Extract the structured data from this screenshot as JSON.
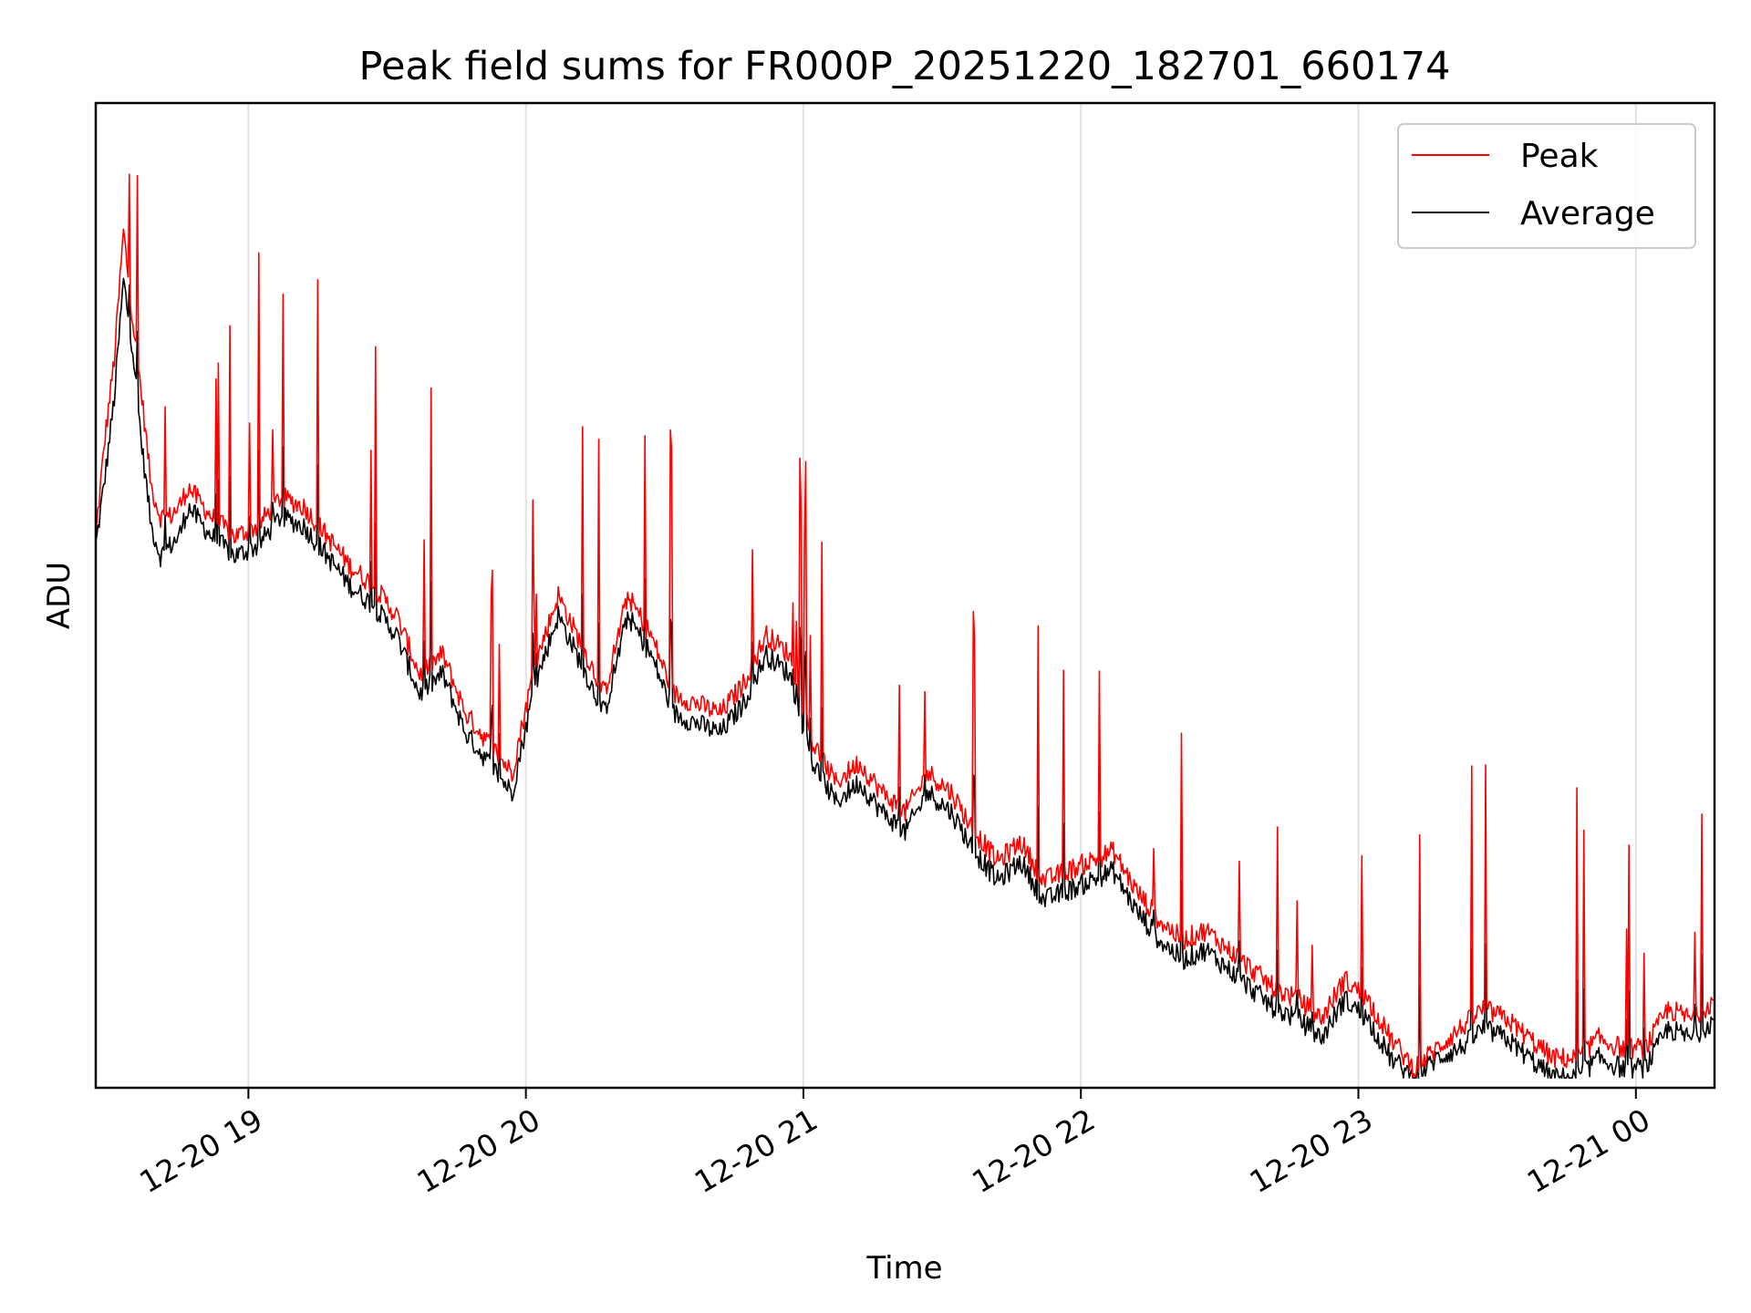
{
  "chart_data": {
    "type": "line",
    "title": "Peak field sums for FR000P_20251220_182701_660174",
    "xlabel": "Time",
    "ylabel": "ADU",
    "x_ticks": [
      "12-20 19",
      "12-20 20",
      "12-20 21",
      "12-20 22",
      "12-20 23",
      "12-21 00"
    ],
    "xlim": [
      "2025-12-20 18:27",
      "2025-12-21 00:17"
    ],
    "ylim": [
      0,
      100
    ],
    "y_tick_labels_shown": false,
    "grid": "vertical",
    "legend": "top-right",
    "series": [
      {
        "name": "Peak",
        "color": "#ff0000",
        "x_minutes_from_1827": [
          0,
          2,
          4,
          6,
          8,
          10,
          12,
          14,
          16,
          18,
          20,
          25,
          30,
          35,
          40,
          45,
          50,
          55,
          60,
          65,
          70,
          75,
          80,
          85,
          90,
          95,
          100,
          105,
          110,
          115,
          120,
          125,
          130,
          135,
          140,
          145,
          150,
          155,
          160,
          165,
          170,
          175,
          180,
          185,
          190,
          195,
          200,
          205,
          210,
          215,
          220,
          225,
          230,
          235,
          240,
          245,
          250,
          255,
          260,
          265,
          270,
          275,
          280,
          285,
          290,
          295,
          300,
          305,
          310,
          315,
          320,
          325,
          330,
          335,
          340,
          345,
          350
        ],
        "values": [
          56,
          66,
          74,
          87,
          78,
          70,
          61,
          58,
          58,
          59,
          61,
          58,
          56,
          57,
          60,
          59,
          56,
          53,
          51,
          48,
          42,
          44,
          38,
          35,
          32,
          43,
          50,
          45,
          40,
          50,
          46,
          40,
          39,
          38,
          41,
          46,
          44,
          35,
          31,
          33,
          30,
          28,
          32,
          30,
          26,
          23,
          25,
          21,
          22,
          23,
          24,
          20,
          17,
          15,
          16,
          14,
          12,
          10,
          9,
          7,
          11,
          9,
          5,
          2,
          4,
          6,
          8,
          7,
          5,
          3,
          3,
          5,
          4,
          4,
          8,
          7,
          9
        ]
      },
      {
        "name": "Average",
        "color": "#000000",
        "x_minutes_from_1827": [
          0,
          2,
          4,
          6,
          8,
          10,
          12,
          14,
          16,
          18,
          20,
          25,
          30,
          35,
          40,
          45,
          50,
          55,
          60,
          65,
          70,
          75,
          80,
          85,
          90,
          95,
          100,
          105,
          110,
          115,
          120,
          125,
          130,
          135,
          140,
          145,
          150,
          155,
          160,
          165,
          170,
          175,
          180,
          185,
          190,
          195,
          200,
          205,
          210,
          215,
          220,
          225,
          230,
          235,
          240,
          245,
          250,
          255,
          260,
          265,
          270,
          275,
          280,
          285,
          290,
          295,
          300,
          305,
          310,
          315,
          320,
          325,
          330,
          335,
          340,
          345,
          350
        ],
        "values": [
          55,
          62,
          70,
          82,
          75,
          65,
          57,
          54,
          55,
          56,
          59,
          56,
          54,
          55,
          58,
          57,
          54,
          51,
          49,
          46,
          40,
          42,
          36,
          33,
          30,
          41,
          48,
          43,
          38,
          48,
          44,
          38,
          37,
          36,
          39,
          44,
          42,
          33,
          29,
          31,
          28,
          26,
          30,
          28,
          24,
          21,
          23,
          19,
          20,
          21,
          22,
          18,
          15,
          13,
          14,
          12,
          10,
          8,
          7,
          5,
          9,
          7,
          3,
          1,
          3,
          4,
          6,
          5,
          3,
          1,
          1,
          3,
          2,
          2,
          6,
          5,
          7
        ]
      }
    ]
  }
}
